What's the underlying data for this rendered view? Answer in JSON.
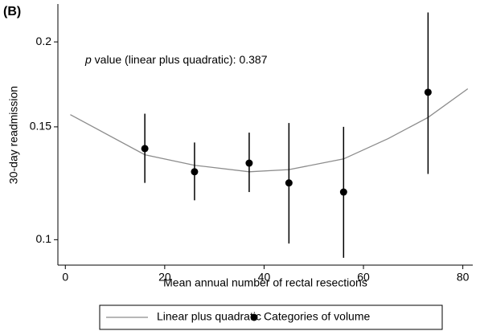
{
  "chart_data": {
    "type": "scatter",
    "panel_label": "(B)",
    "annotation": {
      "italic": "p",
      "text": " value (linear plus quadratic): 0.387"
    },
    "x_label": "Mean annual number of rectal resections",
    "y_label": "30-day readmission",
    "yscale": "logit",
    "xlim": [
      -1.5,
      82
    ],
    "ylim": [
      0.091,
      0.226
    ],
    "xticks": [
      0,
      20,
      40,
      60,
      80
    ],
    "yticks": [
      0.1,
      0.15,
      0.2
    ],
    "grid": false,
    "legend_position": "bottom",
    "series": [
      {
        "name": "Linear plus quadratic",
        "kind": "line",
        "color": "#8c8c8c",
        "x": [
          1,
          16,
          26,
          37,
          45,
          56,
          65,
          73,
          81
        ],
        "values": [
          0.1565,
          0.136,
          0.131,
          0.128,
          0.129,
          0.134,
          0.144,
          0.155,
          0.171
        ]
      },
      {
        "name": "Categories of volume",
        "kind": "points",
        "color": "#000000",
        "x": [
          16,
          26,
          37,
          45,
          56,
          73
        ],
        "values": [
          0.139,
          0.128,
          0.132,
          0.123,
          0.119,
          0.169
        ],
        "lower": [
          0.123,
          0.1155,
          0.119,
          0.0986,
          0.0935,
          0.127
        ],
        "upper": [
          0.157,
          0.142,
          0.147,
          0.152,
          0.15,
          0.22
        ]
      }
    ]
  }
}
